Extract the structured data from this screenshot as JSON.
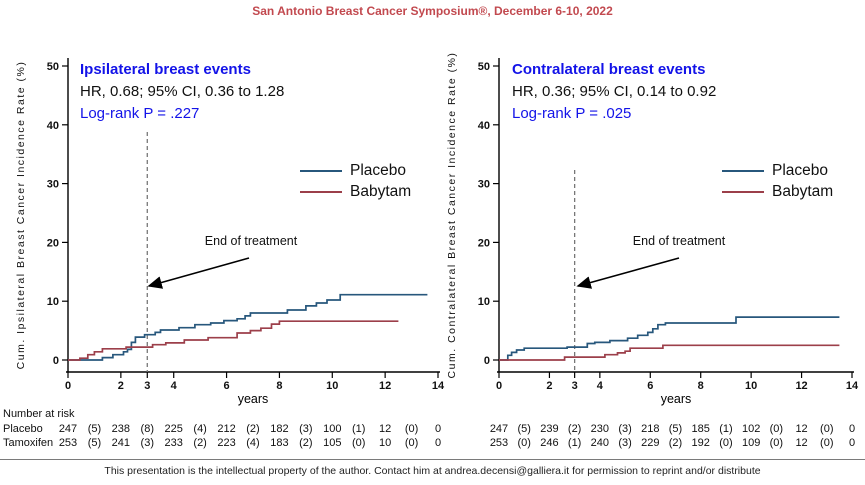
{
  "header": {
    "title": "San Antonio Breast Cancer Symposium®, December 6-10, 2022"
  },
  "footer": {
    "text": "This presentation is the intellectual property of the author. Contact him at andrea.decensi@galliera.it for permission to reprint and/or distribute"
  },
  "number_at_risk_label": "Number at risk",
  "colors": {
    "header_red": "#c2494f",
    "accent_blue": "#1313e8",
    "placebo_line": "#27577c",
    "babytam_line": "#9c3f4a",
    "dashed_gray": "#777777"
  },
  "chart_data": [
    {
      "type": "line",
      "title": "Ipsilateral breast events",
      "hr_text": "HR, 0.68; 95% CI, 0.36 to 1.28",
      "logrank_text": "Log-rank P = .227",
      "ylabel": "Cum. Ipsilateral Breast Cancer Incidence Rate (%)",
      "xlabel": "years",
      "xlim": [
        0,
        14
      ],
      "ylim": [
        0,
        50
      ],
      "xticks": [
        0,
        2,
        3,
        4,
        6,
        8,
        10,
        12,
        14
      ],
      "yticks": [
        0,
        10,
        20,
        30,
        40,
        50
      ],
      "grid": false,
      "legend_position": "right-inside",
      "annotation": {
        "text": "End of treatment",
        "x_year": 3
      },
      "series": [
        {
          "name": "Placebo",
          "color": "#27577c",
          "steps": [
            [
              0,
              0
            ],
            [
              1.3,
              0.4
            ],
            [
              1.7,
              0.9
            ],
            [
              2.1,
              1.4
            ],
            [
              2.25,
              1.8
            ],
            [
              2.4,
              3.0
            ],
            [
              2.55,
              3.9
            ],
            [
              2.9,
              4.3
            ],
            [
              3.3,
              4.7
            ],
            [
              3.5,
              5.1
            ],
            [
              4.2,
              5.5
            ],
            [
              4.8,
              6.0
            ],
            [
              5.4,
              6.3
            ],
            [
              5.9,
              6.7
            ],
            [
              6.4,
              7.0
            ],
            [
              6.7,
              7.5
            ],
            [
              6.9,
              8.0
            ],
            [
              8.3,
              8.5
            ],
            [
              9.0,
              9.2
            ],
            [
              9.4,
              9.7
            ],
            [
              9.8,
              10.2
            ],
            [
              10.3,
              11.1
            ],
            [
              13.6,
              11.1
            ]
          ]
        },
        {
          "name": "Babytam",
          "color": "#9c3f4a",
          "steps": [
            [
              0,
              0
            ],
            [
              0.45,
              0.3
            ],
            [
              0.75,
              0.9
            ],
            [
              1.0,
              1.4
            ],
            [
              1.3,
              1.9
            ],
            [
              2.2,
              2.2
            ],
            [
              3.2,
              2.6
            ],
            [
              3.7,
              2.9
            ],
            [
              4.4,
              3.4
            ],
            [
              5.3,
              3.8
            ],
            [
              6.4,
              4.6
            ],
            [
              6.9,
              5.0
            ],
            [
              7.3,
              5.4
            ],
            [
              7.7,
              6.1
            ],
            [
              8.0,
              6.6
            ],
            [
              12.5,
              6.6
            ]
          ]
        }
      ],
      "number_at_risk": {
        "rows": [
          {
            "label": "Placebo",
            "values": [
              "247",
              "(5)",
              "238",
              "(8)",
              "225",
              "(4)",
              "212",
              "(2)",
              "182",
              "(3)",
              "100",
              "(1)",
              "12",
              "(0)",
              "0"
            ]
          },
          {
            "label": "Tamoxifen",
            "values": [
              "253",
              "(5)",
              "241",
              "(3)",
              "233",
              "(2)",
              "223",
              "(4)",
              "183",
              "(2)",
              "105",
              "(0)",
              "10",
              "(0)",
              "0"
            ]
          }
        ]
      }
    },
    {
      "type": "line",
      "title": "Contralateral breast events",
      "hr_text": "HR, 0.36; 95% CI, 0.14 to 0.92",
      "logrank_text": "Log-rank P = .025",
      "ylabel": "Cum. Contralateral Breast Cancer Incidence Rate (%)",
      "xlabel": "years",
      "xlim": [
        0,
        14
      ],
      "ylim": [
        0,
        50
      ],
      "xticks": [
        0,
        2,
        3,
        4,
        6,
        8,
        10,
        12,
        14
      ],
      "yticks": [
        0,
        10,
        20,
        30,
        40,
        50
      ],
      "grid": false,
      "legend_position": "right-inside",
      "annotation": {
        "text": "End of treatment",
        "x_year": 3
      },
      "series": [
        {
          "name": "Placebo",
          "color": "#27577c",
          "steps": [
            [
              0,
              0
            ],
            [
              0.35,
              0.8
            ],
            [
              0.5,
              1.3
            ],
            [
              0.7,
              1.7
            ],
            [
              1.0,
              2.0
            ],
            [
              2.7,
              2.2
            ],
            [
              3.5,
              2.8
            ],
            [
              3.8,
              3.0
            ],
            [
              4.4,
              3.3
            ],
            [
              5.1,
              3.7
            ],
            [
              5.5,
              4.2
            ],
            [
              5.9,
              4.7
            ],
            [
              6.1,
              5.3
            ],
            [
              6.3,
              6.0
            ],
            [
              6.6,
              6.3
            ],
            [
              9.4,
              7.3
            ],
            [
              13.5,
              7.3
            ]
          ]
        },
        {
          "name": "Babytam",
          "color": "#9c3f4a",
          "steps": [
            [
              0,
              0
            ],
            [
              2.6,
              0.5
            ],
            [
              4.2,
              0.9
            ],
            [
              4.7,
              1.2
            ],
            [
              5.0,
              1.5
            ],
            [
              5.2,
              2.0
            ],
            [
              6.5,
              2.5
            ],
            [
              13.5,
              2.5
            ]
          ]
        }
      ],
      "number_at_risk": {
        "rows": [
          {
            "label": "",
            "values": [
              "247",
              "(5)",
              "239",
              "(2)",
              "230",
              "(3)",
              "218",
              "(5)",
              "185",
              "(1)",
              "102",
              "(0)",
              "12",
              "(0)",
              "0"
            ]
          },
          {
            "label": "",
            "values": [
              "253",
              "(0)",
              "246",
              "(1)",
              "240",
              "(3)",
              "229",
              "(2)",
              "192",
              "(0)",
              "109",
              "(0)",
              "12",
              "(0)",
              "0"
            ]
          }
        ]
      }
    }
  ]
}
